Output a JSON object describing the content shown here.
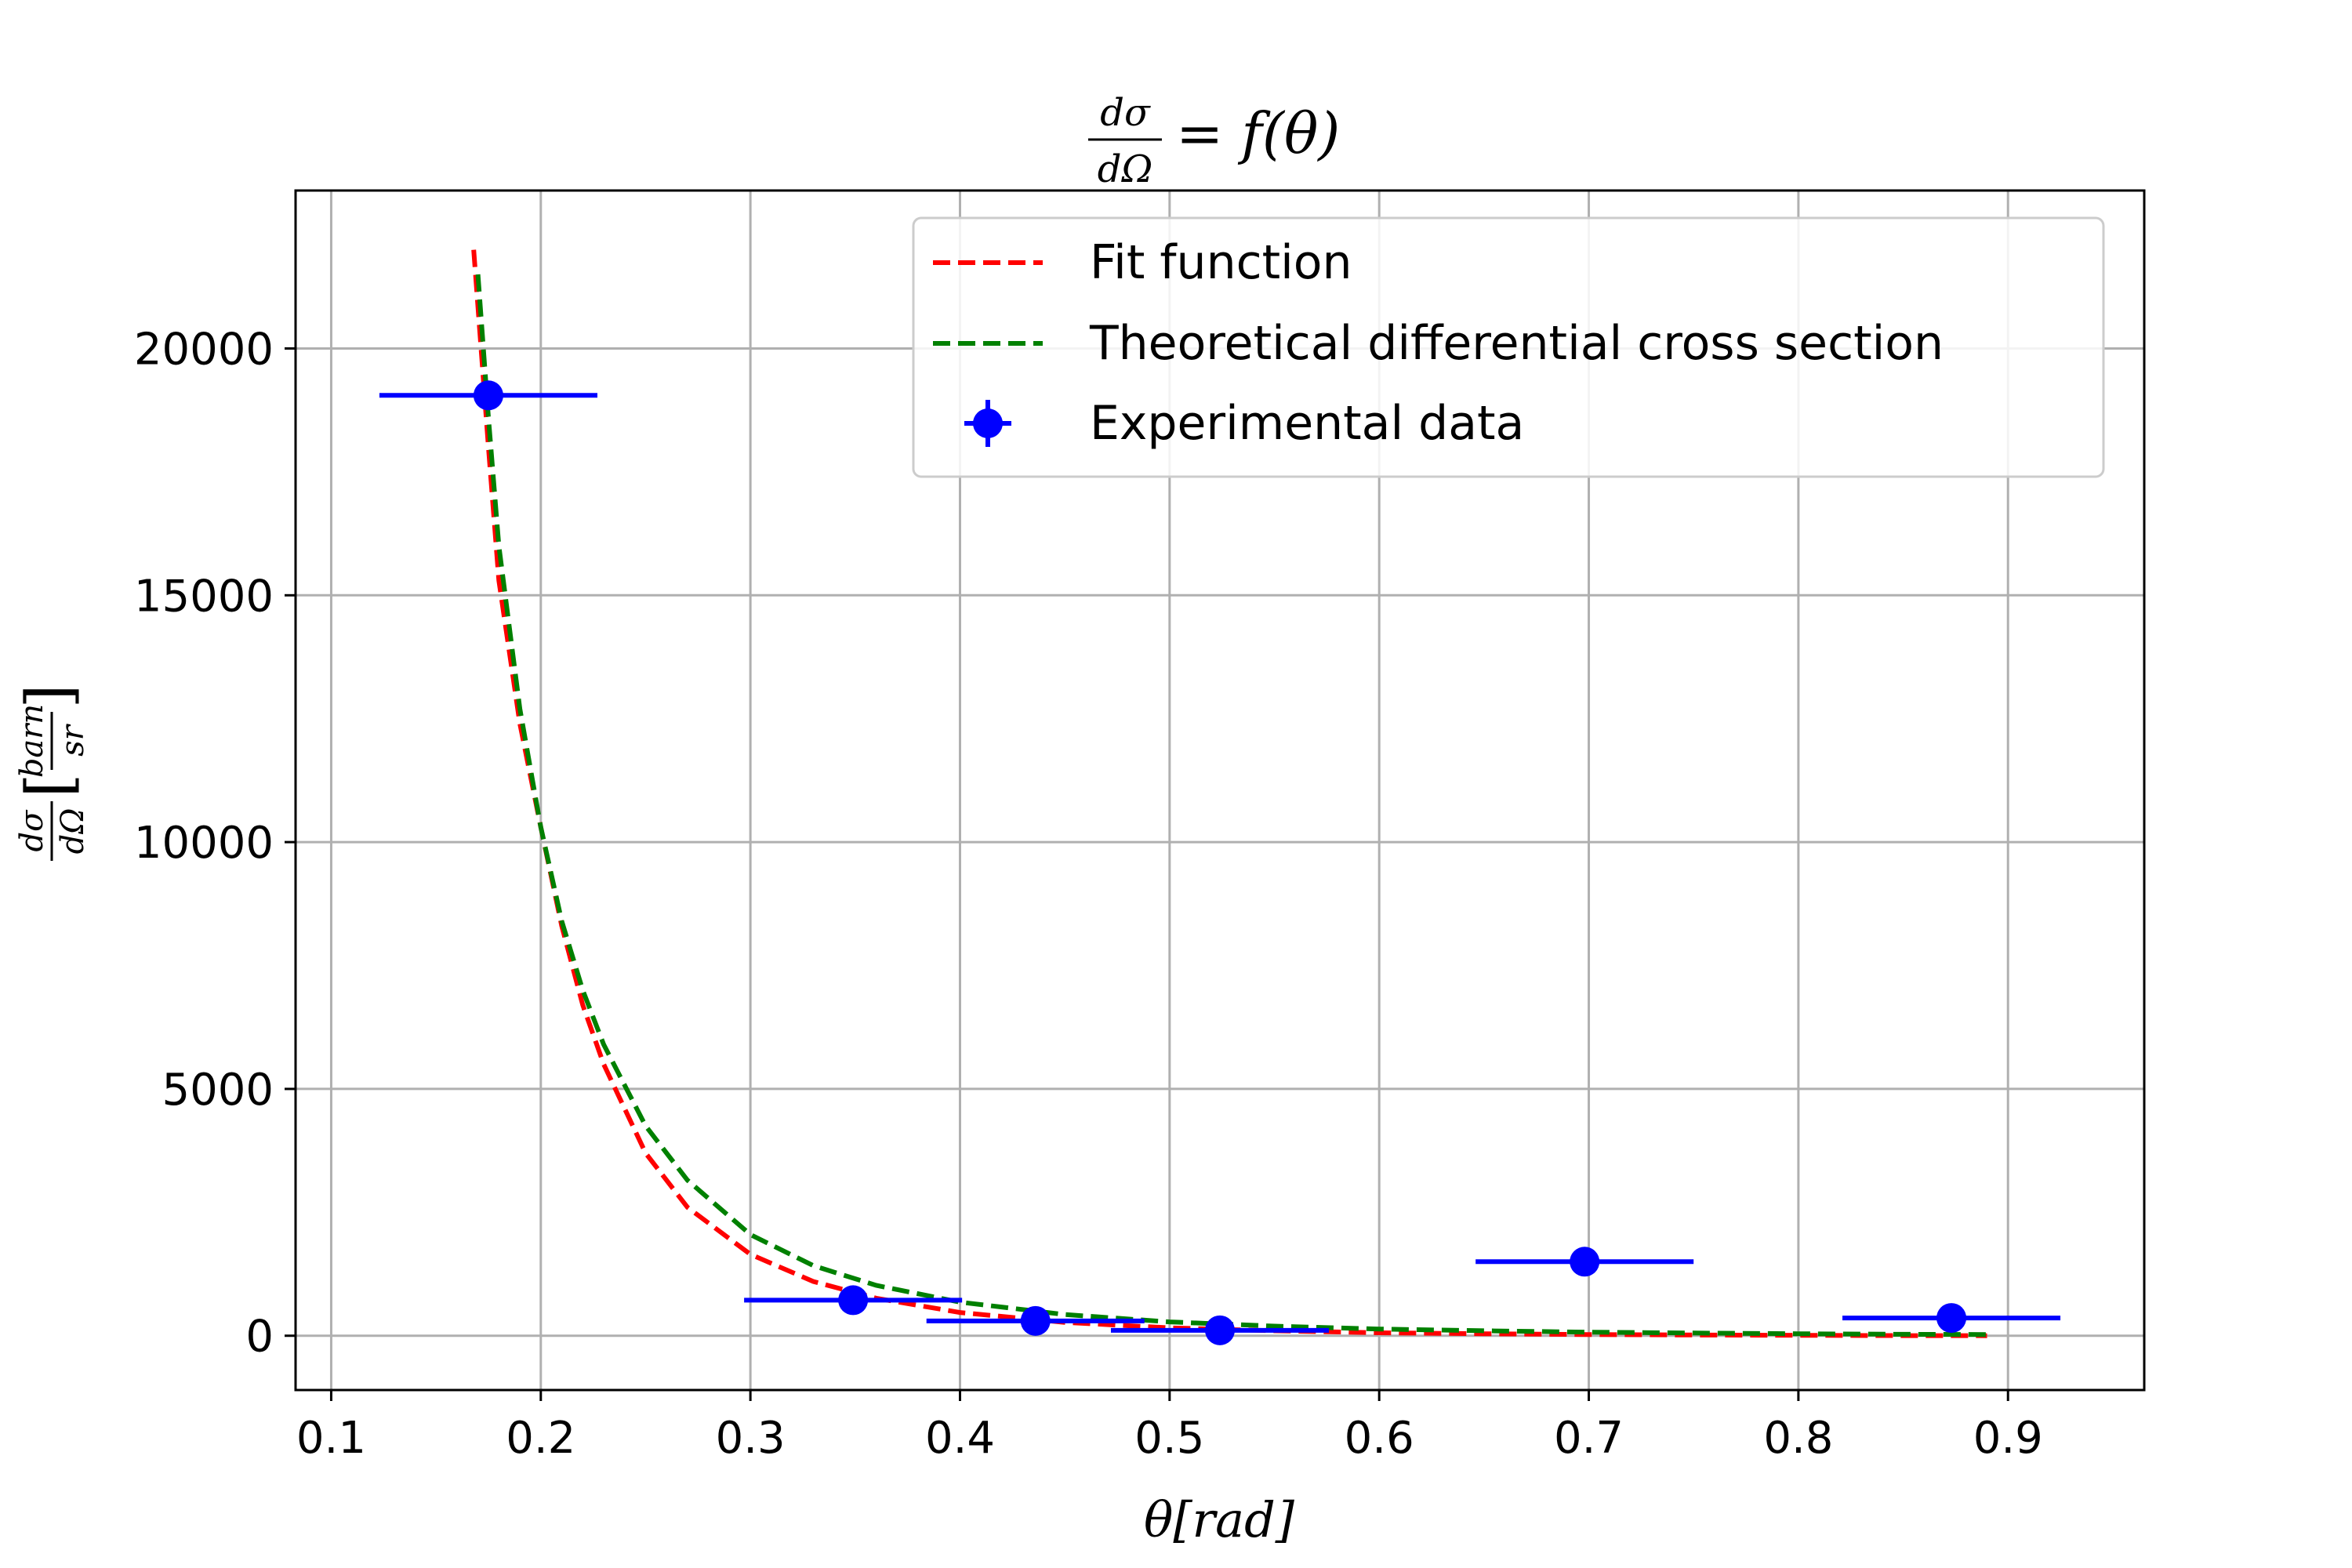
{
  "chart_data": {
    "type": "scatter",
    "title": {
      "frac_num": "dσ",
      "frac_den": "dΩ",
      "rhs": "= f(θ)"
    },
    "xlabel": "θ[rad]",
    "ylabel": {
      "frac_num": "dσ",
      "frac_den": "dΩ",
      "unit_num": "barn",
      "unit_den": "sr"
    },
    "xlim": [
      0.083,
      0.965
    ],
    "ylim": [
      -1100,
      23200
    ],
    "xticks": [
      0.1,
      0.2,
      0.3,
      0.4,
      0.5,
      0.6,
      0.7,
      0.8,
      0.9
    ],
    "xtick_labels": [
      "0.1",
      "0.2",
      "0.3",
      "0.4",
      "0.5",
      "0.6",
      "0.7",
      "0.8",
      "0.9"
    ],
    "yticks": [
      0,
      5000,
      10000,
      15000,
      20000
    ],
    "ytick_labels": [
      "0",
      "5000",
      "10000",
      "15000",
      "20000"
    ],
    "grid": true,
    "legend_position": "top-right",
    "series": [
      {
        "name": "Fit function",
        "kind": "line",
        "style": "dashed",
        "color": "#ff0000",
        "x": [
          0.168,
          0.175,
          0.18,
          0.19,
          0.2,
          0.21,
          0.22,
          0.23,
          0.25,
          0.27,
          0.3,
          0.33,
          0.36,
          0.4,
          0.45,
          0.5,
          0.55,
          0.6,
          0.65,
          0.7,
          0.75,
          0.8,
          0.85,
          0.89
        ],
        "y": [
          22000,
          18000,
          15300,
          12400,
          10300,
          8300,
          6700,
          5500,
          3700,
          2600,
          1650,
          1100,
          760,
          470,
          270,
          160,
          100,
          60,
          40,
          25,
          15,
          8,
          3,
          0
        ]
      },
      {
        "name": "Theoretical differential cross section",
        "kind": "line",
        "style": "dashed",
        "color": "#008000",
        "x": [
          0.17,
          0.175,
          0.18,
          0.19,
          0.2,
          0.21,
          0.22,
          0.23,
          0.25,
          0.27,
          0.3,
          0.33,
          0.36,
          0.4,
          0.45,
          0.5,
          0.55,
          0.6,
          0.65,
          0.7,
          0.75,
          0.8,
          0.85,
          0.89
        ],
        "y": [
          21500,
          18600,
          16000,
          12700,
          10300,
          8400,
          7000,
          5900,
          4250,
          3150,
          2050,
          1420,
          1020,
          680,
          430,
          280,
          195,
          135,
          100,
          72,
          55,
          40,
          30,
          25
        ]
      },
      {
        "name": "Experimental data",
        "kind": "errorbar",
        "color": "#0000ff",
        "x": [
          0.175,
          0.349,
          0.436,
          0.524,
          0.698,
          0.873
        ],
        "y": [
          19050,
          720,
          300,
          110,
          1500,
          360
        ],
        "xerr": [
          0.052,
          0.052,
          0.052,
          0.052,
          0.052,
          0.052
        ]
      }
    ]
  }
}
